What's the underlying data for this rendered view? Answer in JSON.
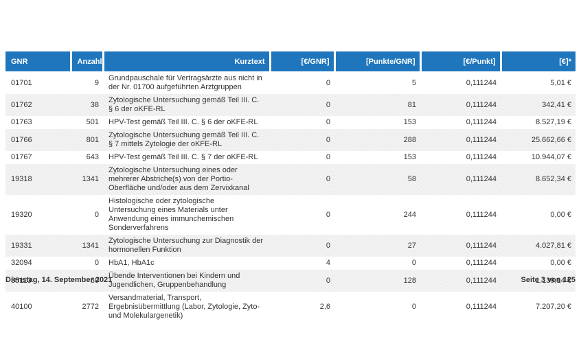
{
  "colors": {
    "header_bg": "#1f76bd",
    "header_text": "#ffffff",
    "row_alt_bg": "#efefef",
    "body_text": "#333333"
  },
  "table": {
    "columns": [
      {
        "label": "GNR"
      },
      {
        "label": "Anzahl"
      },
      {
        "label": "Kurztext"
      },
      {
        "label": "[€/GNR]"
      },
      {
        "label": "[Punkte/GNR]"
      },
      {
        "label": "[€/Punkt]"
      },
      {
        "label": "[€]*"
      }
    ],
    "rows": [
      {
        "gnr": "01701",
        "anzahl": "9",
        "kurztext": "Grundpauschale für Vertragsärzte aus nicht in der Nr. 01700 aufgeführten Arztgruppen",
        "eur_gnr": "0",
        "punkte_gnr": "5",
        "eur_punkt": "0,111244",
        "eur": "5,01 €"
      },
      {
        "gnr": "01762",
        "anzahl": "38",
        "kurztext": "Zytologische Untersuchung gemäß Teil III. C. § 6 der oKFE-RL",
        "eur_gnr": "0",
        "punkte_gnr": "81",
        "eur_punkt": "0,111244",
        "eur": "342,41 €"
      },
      {
        "gnr": "01763",
        "anzahl": "501",
        "kurztext": "HPV-Test gemäß Teil III. C. § 6 der oKFE-RL",
        "eur_gnr": "0",
        "punkte_gnr": "153",
        "eur_punkt": "0,111244",
        "eur": "8.527,19 €"
      },
      {
        "gnr": "01766",
        "anzahl": "801",
        "kurztext": "Zytologische Untersuchung gemäß Teil III. C. § 7 mittels Zytologie der oKFE-RL",
        "eur_gnr": "0",
        "punkte_gnr": "288",
        "eur_punkt": "0,111244",
        "eur": "25.662,66 €"
      },
      {
        "gnr": "01767",
        "anzahl": "643",
        "kurztext": "HPV-Test gemäß Teil III. C. § 7 der oKFE-RL",
        "eur_gnr": "0",
        "punkte_gnr": "153",
        "eur_punkt": "0,111244",
        "eur": "10.944,07 €"
      },
      {
        "gnr": "19318",
        "anzahl": "1341",
        "kurztext": "Zytologische Untersuchung eines oder mehrerer Abstriche(s) von der Portio-Oberfläche und/oder aus dem Zervixkanal",
        "eur_gnr": "0",
        "punkte_gnr": "58",
        "eur_punkt": "0,111244",
        "eur": "8.652,34 €"
      },
      {
        "gnr": "19320",
        "anzahl": "0",
        "kurztext": "Histologische oder zytologische Untersuchung eines Materials unter Anwendung eines immunchemischen Sonderverfahrens",
        "eur_gnr": "0",
        "punkte_gnr": "244",
        "eur_punkt": "0,111244",
        "eur": "0,00 €"
      },
      {
        "gnr": "19331",
        "anzahl": "1341",
        "kurztext": "Zytologische Untersuchung zur Diagnostik der hormonellen Funktion",
        "eur_gnr": "0",
        "punkte_gnr": "27",
        "eur_punkt": "0,111244",
        "eur": "4.027,81 €"
      },
      {
        "gnr": "32094",
        "anzahl": "0",
        "kurztext": "HbA1, HbA1c",
        "eur_gnr": "4",
        "punkte_gnr": "0",
        "eur_punkt": "0,111244",
        "eur": "0,00 €"
      },
      {
        "gnr": "35113",
        "anzahl": "80",
        "kurztext": "Übende Interventionen bei Kindern und Jugendlichen, Gruppenbehandlung",
        "eur_gnr": "0",
        "punkte_gnr": "128",
        "eur_punkt": "0,111244",
        "eur": "1.139,14 €"
      },
      {
        "gnr": "40100",
        "anzahl": "2772",
        "kurztext": "Versandmaterial, Transport, Ergebnisübermittlung (Labor, Zytologie, Zyto- und Molekulargenetik)",
        "eur_gnr": "2,6",
        "punkte_gnr": "0",
        "eur_punkt": "0,111244",
        "eur": "7.207,20 €"
      }
    ]
  },
  "footer": {
    "date": "Dienstag, 14. September 2021",
    "page": "Seite 3 von 125"
  }
}
